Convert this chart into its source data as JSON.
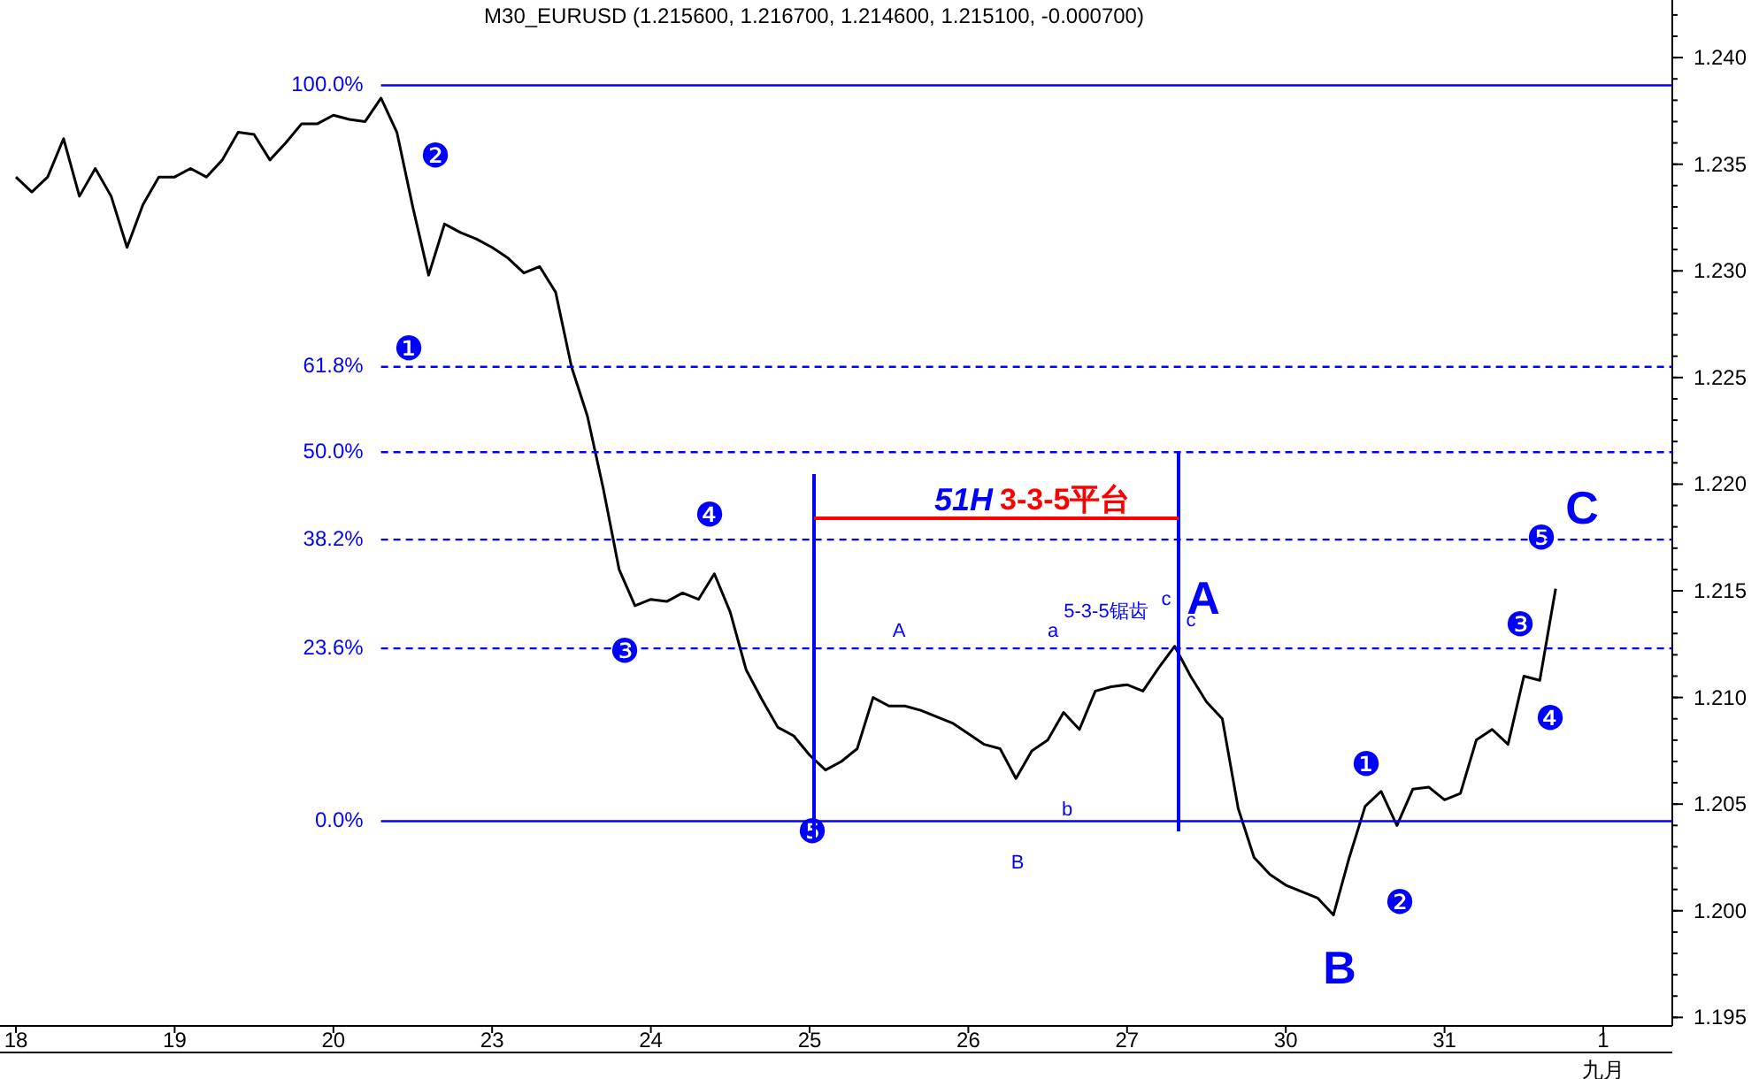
{
  "chart_data": {
    "type": "line",
    "title": "M30_EURUSD (1.215600, 1.216700, 1.214600, 1.215100, -0.000700)",
    "categories": [
      "18",
      null,
      null,
      null,
      null,
      null,
      null,
      null,
      null,
      null,
      "19",
      null,
      null,
      null,
      null,
      null,
      null,
      null,
      null,
      null,
      "20",
      null,
      null,
      null,
      null,
      null,
      null,
      null,
      null,
      null,
      "23",
      null,
      null,
      null,
      null,
      null,
      null,
      null,
      null,
      null,
      "24",
      null,
      null,
      null,
      null,
      null,
      null,
      null,
      null,
      null,
      "25",
      null,
      null,
      null,
      null,
      null,
      null,
      null,
      null,
      null,
      "26",
      null,
      null,
      null,
      null,
      null,
      null,
      null,
      null,
      null,
      "27",
      null,
      null,
      null,
      null,
      null,
      null,
      null,
      null,
      null,
      "30",
      null,
      null,
      null,
      null,
      null,
      null,
      null,
      null,
      null,
      "31",
      null,
      null,
      null,
      null,
      null,
      null,
      null,
      null,
      null,
      "1\n九月",
      null,
      null,
      null,
      null
    ],
    "series": [
      {
        "color": "#000000",
        "values": [
          1.2344,
          1.2337,
          1.2344,
          1.2362,
          1.2335,
          1.2348,
          1.2335,
          1.2311,
          1.2331,
          1.2344,
          1.2344,
          1.2348,
          1.2344,
          1.2352,
          1.2365,
          1.2364,
          1.2352,
          1.236,
          1.2369,
          1.2369,
          1.2373,
          1.2371,
          1.237,
          1.2381,
          1.2365,
          1.233,
          1.2298,
          1.2322,
          1.2318,
          1.2315,
          1.2311,
          1.2306,
          1.2299,
          1.2302,
          1.229,
          1.2255,
          1.2232,
          1.2198,
          1.216,
          1.2143,
          1.2146,
          1.2145,
          1.2149,
          1.2146,
          1.2158,
          1.214,
          1.2113,
          1.2099,
          1.2086,
          1.2082,
          1.2073,
          1.2066,
          1.207,
          1.2076,
          1.21,
          1.2096,
          1.2096,
          1.2094,
          1.2091,
          1.2088,
          1.2083,
          1.2078,
          1.2076,
          1.2062,
          1.2075,
          1.208,
          1.2093,
          1.2085,
          1.2103,
          1.2105,
          1.2106,
          1.2103,
          1.2114,
          1.2124,
          1.211,
          1.2098,
          1.209,
          1.2048,
          1.2025,
          1.2017,
          1.2012,
          1.2009,
          1.2006,
          1.1998,
          1.2025,
          1.2049,
          1.2056,
          1.204,
          1.2057,
          1.2058,
          1.2052,
          1.2055,
          1.208,
          1.2085,
          1.2078,
          1.211,
          1.2108,
          1.2151,
          null,
          null,
          null,
          null,
          null,
          null,
          null
        ]
      }
    ],
    "ylim": [
      1.1946,
      1.2427
    ],
    "yticks": [
      {
        "value": 1.195,
        "label": "1.195"
      },
      {
        "value": 1.2,
        "label": "1.200"
      },
      {
        "value": 1.205,
        "label": "1.205"
      },
      {
        "value": 1.21,
        "label": "1.210"
      },
      {
        "value": 1.215,
        "label": "1.215"
      },
      {
        "value": 1.22,
        "label": "1.220"
      },
      {
        "value": 1.225,
        "label": "1.225"
      },
      {
        "value": 1.23,
        "label": "1.230"
      },
      {
        "value": 1.235,
        "label": "1.235"
      },
      {
        "value": 1.24,
        "label": "1.240"
      }
    ],
    "ref_lines": [
      {
        "axis": "y",
        "value": 1.2387,
        "color": "#0000ff",
        "line_style": "solid"
      },
      {
        "axis": "y",
        "value": 1.2255,
        "color": "#0000ff",
        "line_style": "dashed"
      },
      {
        "axis": "y",
        "value": 1.2215,
        "color": "#0000ff",
        "line_style": "dashed"
      },
      {
        "axis": "y",
        "value": 1.2174,
        "color": "#0000ff",
        "line_style": "dashed"
      },
      {
        "axis": "y",
        "value": 1.2123,
        "color": "#0000ff",
        "line_style": "dashed"
      },
      {
        "axis": "y",
        "value": 1.2042,
        "color": "#0000ff",
        "line_style": "solid"
      }
    ],
    "annotations": [
      "❶",
      "❷",
      "❸",
      "❹",
      "❺",
      "❶",
      "❷",
      "❸",
      "❹",
      "❺",
      "A",
      "B",
      "C",
      "A",
      "B",
      "a",
      "b",
      "c",
      "c",
      "5-3-5锯齿",
      "51H",
      "3-3-5平台",
      "100.0%",
      "61.8%",
      "50.0%",
      "38.2%",
      "23.6%",
      "0.0%"
    ]
  }
}
